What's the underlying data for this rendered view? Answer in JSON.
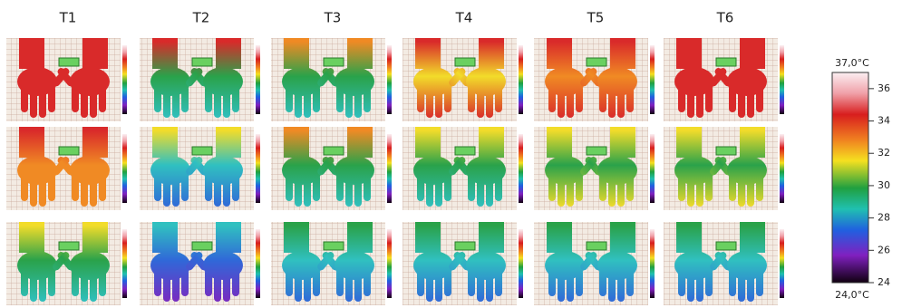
{
  "columns": [
    "T1",
    "T2",
    "T3",
    "T4",
    "T5",
    "T6"
  ],
  "colorbar": {
    "top_label": "37,0°C",
    "bottom_label": "24,0°C",
    "range": [
      24,
      37
    ],
    "ticks": [
      24,
      26,
      28,
      30,
      32,
      34,
      36
    ]
  }
}
